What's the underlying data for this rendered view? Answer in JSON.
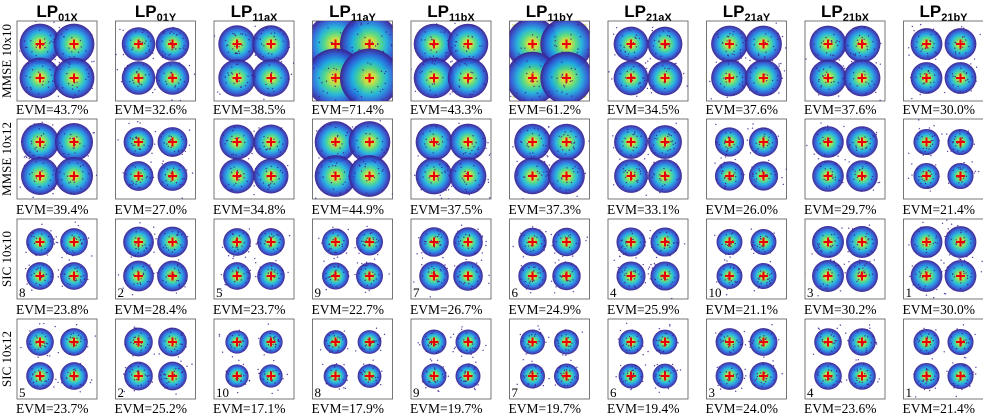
{
  "chart_data": {
    "type": "scatter",
    "description_type": "constellation-grid",
    "columns": [
      {
        "base": "LP",
        "sub": "01X"
      },
      {
        "base": "LP",
        "sub": "01Y"
      },
      {
        "base": "LP",
        "sub": "11aX"
      },
      {
        "base": "LP",
        "sub": "11aY"
      },
      {
        "base": "LP",
        "sub": "11bX"
      },
      {
        "base": "LP",
        "sub": "11bY"
      },
      {
        "base": "LP",
        "sub": "21aX"
      },
      {
        "base": "LP",
        "sub": "21aY"
      },
      {
        "base": "LP",
        "sub": "21bX"
      },
      {
        "base": "LP",
        "sub": "21bY"
      }
    ],
    "rows": [
      {
        "label": "MMSE 10x10",
        "evm": [
          "EVM=43.7%",
          "EVM=32.6%",
          "EVM=38.5%",
          "EVM=71.4%",
          "EVM=43.3%",
          "EVM=61.2%",
          "EVM=34.5%",
          "EVM=37.6%",
          "EVM=37.6%",
          "EVM=30.0%"
        ],
        "evm_values": [
          43.7,
          32.6,
          38.5,
          71.4,
          43.3,
          61.2,
          34.5,
          37.6,
          37.6,
          30.0
        ],
        "iterations": [
          "",
          "",
          "",
          "",
          "",
          "",
          "",
          "",
          "",
          ""
        ]
      },
      {
        "label": "MMSE 10x12",
        "evm": [
          "EVM=39.4%",
          "EVM=27.0%",
          "EVM=34.8%",
          "EVM=44.9%",
          "EVM=37.5%",
          "EVM=37.3%",
          "EVM=33.1%",
          "EVM=26.0%",
          "EVM=29.7%",
          "EVM=21.4%"
        ],
        "evm_values": [
          39.4,
          27.0,
          34.8,
          44.9,
          37.5,
          37.3,
          33.1,
          26.0,
          29.7,
          21.4
        ],
        "iterations": [
          "",
          "",
          "",
          "",
          "",
          "",
          "",
          "",
          "",
          ""
        ]
      },
      {
        "label": "SIC 10x10",
        "evm": [
          "EVM=23.8%",
          "EVM=28.4%",
          "EVM=23.7%",
          "EVM=22.7%",
          "EVM=26.7%",
          "EVM=24.9%",
          "EVM=25.9%",
          "EVM=21.1%",
          "EVM=30.2%",
          "EVM=30.0%"
        ],
        "evm_values": [
          23.8,
          28.4,
          23.7,
          22.7,
          26.7,
          24.9,
          25.9,
          21.1,
          30.2,
          30.0
        ],
        "iterations": [
          "8",
          "2",
          "5",
          "9",
          "7",
          "6",
          "4",
          "10",
          "3",
          "1"
        ]
      },
      {
        "label": "SIC 10x12",
        "evm": [
          "EVM=23.7%",
          "EVM=25.2%",
          "EVM=17.1%",
          "EVM=17.9%",
          "EVM=19.7%",
          "EVM=19.7%",
          "EVM=19.4%",
          "EVM=24.0%",
          "EVM=23.6%",
          "EVM=21.4%"
        ],
        "evm_values": [
          23.7,
          25.2,
          17.1,
          17.9,
          19.7,
          19.7,
          19.4,
          24.0,
          23.6,
          21.4
        ],
        "iterations": [
          "5",
          "2",
          "10",
          "8",
          "9",
          "7",
          "6",
          "3",
          "4",
          "1"
        ]
      }
    ],
    "constellation_points": [
      [
        -1,
        1
      ],
      [
        1,
        1
      ],
      [
        -1,
        -1
      ],
      [
        1,
        -1
      ]
    ],
    "marker": "+",
    "marker_color": "#e8000b",
    "colormap": [
      "#3b1c8c",
      "#2c5fd8",
      "#1fb0e0",
      "#4cd88a",
      "#c8e040",
      "#f7d020"
    ]
  }
}
